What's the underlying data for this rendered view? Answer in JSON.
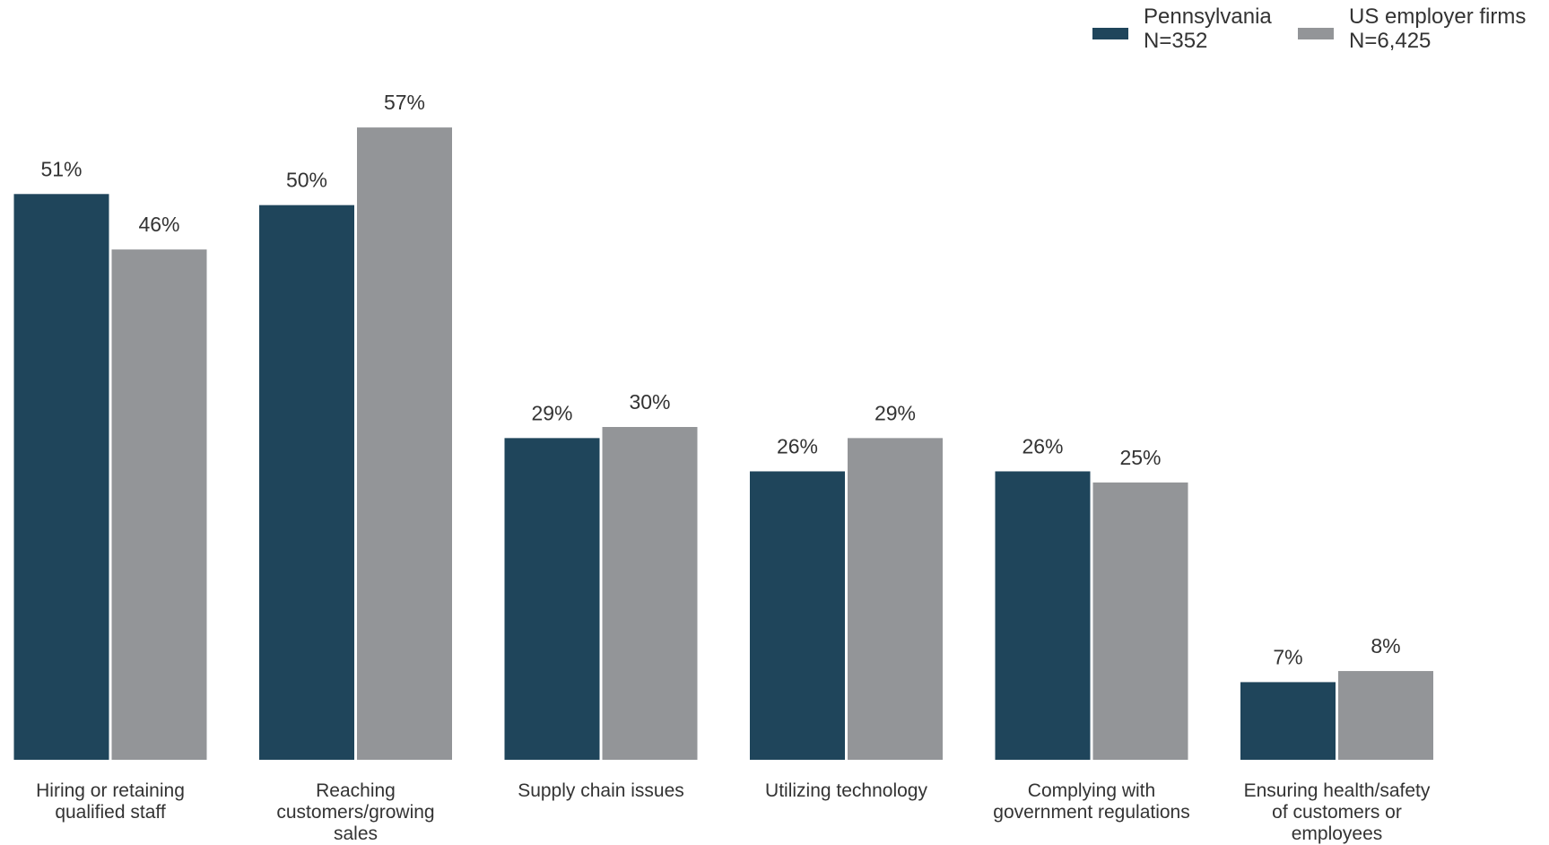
{
  "chart_data": {
    "type": "bar",
    "categories": [
      "Hiring or retaining\nqualified staff",
      "Reaching\ncustomers/growing\nsales",
      "Supply chain issues",
      "Utilizing technology",
      "Complying with\ngovernment regulations",
      "Ensuring health/safety\nof customers or\nemployees"
    ],
    "series": [
      {
        "name": "Pennsylvania\nN=352",
        "color": "#1f455b",
        "values": [
          51,
          50,
          29,
          26,
          26,
          7
        ],
        "value_labels": [
          "51%",
          "50%",
          "29%",
          "26%",
          "26%",
          "7%"
        ]
      },
      {
        "name": "US employer firms\nN=6,425",
        "color": "#939598",
        "values": [
          46,
          57,
          30,
          29,
          25,
          8
        ],
        "value_labels": [
          "46%",
          "57%",
          "30%",
          "29%",
          "25%",
          "8%"
        ]
      }
    ],
    "ylim": [
      0,
      60
    ],
    "legend": "top-right"
  }
}
